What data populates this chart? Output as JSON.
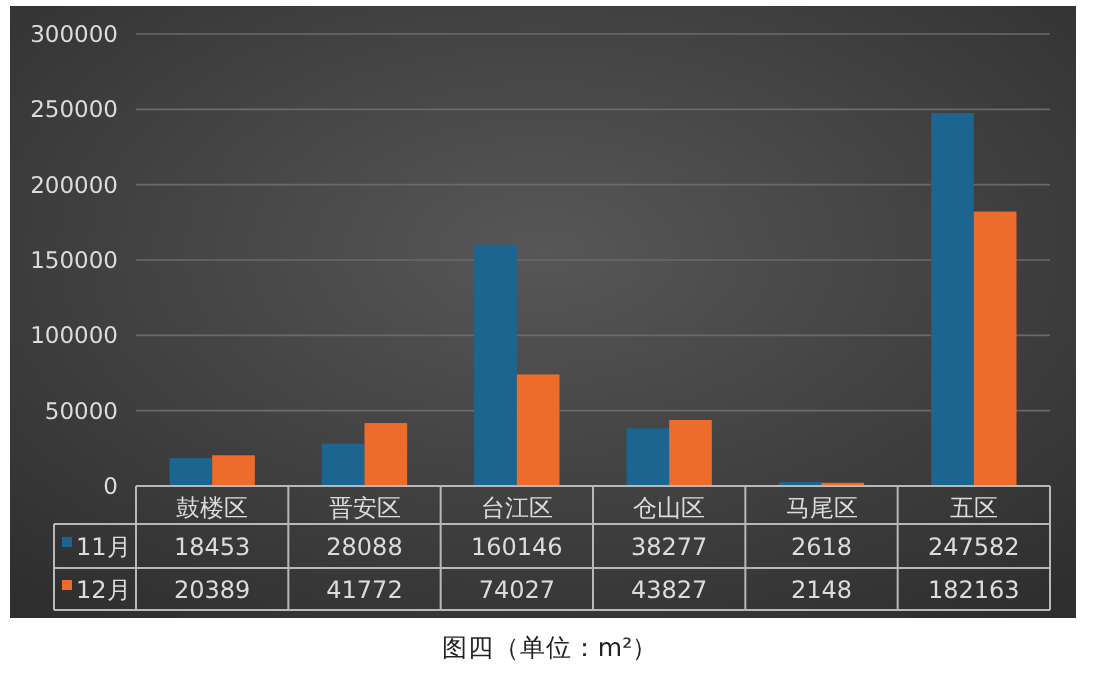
{
  "chart_data": {
    "type": "bar",
    "categories": [
      "鼓楼区",
      "晋安区",
      "台江区",
      "仓山区",
      "马尾区",
      "五区"
    ],
    "series": [
      {
        "name": "11月",
        "color": "#1d6591",
        "values": [
          18453,
          28088,
          160146,
          38277,
          2618,
          247582
        ]
      },
      {
        "name": "12月",
        "color": "#ee6c2b",
        "values": [
          20389,
          41772,
          74027,
          43827,
          2148,
          182163
        ]
      }
    ],
    "ylim": [
      0,
      300000
    ],
    "yticks": [
      0,
      50000,
      100000,
      150000,
      200000,
      250000,
      300000
    ],
    "grid": "y",
    "legend": "bottom",
    "data_labels": true,
    "annotations": [
      "图四（单位：m²）"
    ]
  }
}
